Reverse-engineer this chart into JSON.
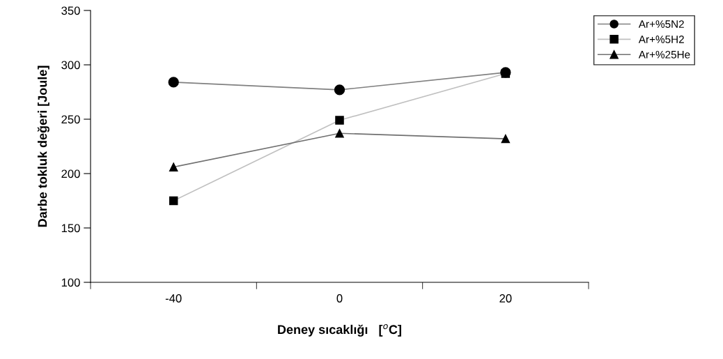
{
  "chart_data": {
    "type": "line",
    "xlabel": "Deney sıcaklığı   [$^{o}$C]",
    "ylabel": "Darbe tokluk değeri [Joule]",
    "categories": [
      "-40",
      "0",
      "20"
    ],
    "series": [
      {
        "name": "Ar+%5N2",
        "color": "#808080",
        "marker": "circle",
        "values": [
          284,
          277,
          293
        ]
      },
      {
        "name": "Ar+%5H2",
        "color": "#c0c0c0",
        "marker": "square",
        "values": [
          175,
          249,
          292
        ]
      },
      {
        "name": "Ar+%25He",
        "color": "#707070",
        "marker": "triangle",
        "values": [
          206,
          237,
          232
        ]
      }
    ],
    "ylim": [
      100,
      350
    ],
    "yticks": [
      100,
      150,
      200,
      250,
      300,
      350
    ],
    "grid": false,
    "legend": "top right"
  }
}
